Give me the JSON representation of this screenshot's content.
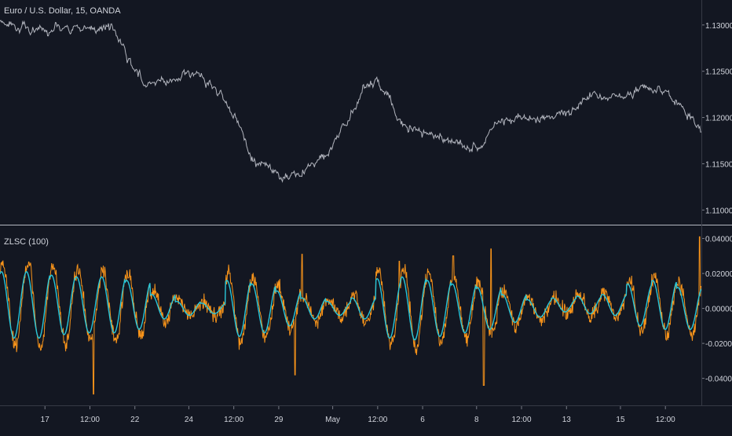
{
  "chart_data": [
    {
      "type": "line",
      "title": "Euro / U.S. Dollar, 15, OANDA",
      "series": [],
      "y_ticks": [
        "1.13000",
        "1.12500",
        "1.12000",
        "1.11500",
        "1.11000"
      ],
      "y_tick_values": [
        1.13,
        1.125,
        1.12,
        1.115,
        1.11
      ],
      "ylim": [
        1.1085,
        1.1327
      ],
      "price_path": {
        "x": [
          0,
          5,
          10,
          15,
          18,
          20,
          22,
          23,
          25,
          27,
          30,
          33,
          35,
          37,
          38,
          40,
          43,
          45,
          48,
          50,
          52,
          55,
          58,
          60,
          65,
          70,
          75,
          80,
          85,
          90,
          95,
          100,
          105,
          110,
          112
        ],
        "close": [
          1.1306,
          1.1298,
          1.13,
          1.1295,
          1.1298,
          1.1275,
          1.1248,
          1.124,
          1.1242,
          1.124,
          1.1248,
          1.1237,
          1.123,
          1.121,
          1.1195,
          1.116,
          1.1145,
          1.1135,
          1.1137,
          1.1155,
          1.116,
          1.1185,
          1.1235,
          1.1242,
          1.119,
          1.118,
          1.1163,
          1.1197,
          1.1202,
          1.1206,
          1.1222,
          1.1228,
          1.1236,
          1.1205,
          1.118
        ]
      }
    },
    {
      "type": "line",
      "title": "ZLSC (100)",
      "series": [],
      "y_ticks": [
        "0.04000",
        "0.02000",
        "0.00000",
        "-0.02000",
        "-0.04000"
      ],
      "y_tick_values": [
        0.04,
        0.02,
        0.0,
        -0.02,
        -0.04
      ],
      "ylim": [
        -0.055,
        0.047
      ],
      "signal_amplitude": [
        0.019,
        0.019,
        0.017,
        0.016,
        0.016,
        0.014,
        0.007,
        0.004,
        0.003,
        0.016,
        0.014,
        0.01,
        0.006,
        0.004,
        0.006,
        0.017,
        0.018,
        0.016,
        0.014,
        0.012,
        0.008,
        0.005,
        0.004,
        0.005,
        0.006,
        0.012,
        0.014,
        0.012
      ],
      "signal_offset": [
        0.002,
        0.002,
        0.002,
        0.002,
        0.002,
        0.002,
        0.001,
        0.0,
        0.0,
        0.0,
        0.0,
        0.0,
        0.0,
        0.0,
        0.0,
        0.0,
        0.0,
        0.0,
        0.0,
        0.0,
        0.0,
        0.0,
        0.002,
        0.002,
        0.002,
        0.002,
        0.002,
        0.0
      ],
      "spikes": [
        {
          "x": 5.2,
          "value": -0.049
        },
        {
          "x": 16.4,
          "value": -0.038
        },
        {
          "x": 16.8,
          "value": 0.031
        },
        {
          "x": 22.2,
          "value": 0.027
        },
        {
          "x": 25.2,
          "value": 0.03
        },
        {
          "x": 26.9,
          "value": -0.044
        },
        {
          "x": 27.3,
          "value": 0.034
        },
        {
          "x": 38.9,
          "value": 0.041
        },
        {
          "x": 48.0,
          "value": 0.031
        }
      ]
    }
  ],
  "x_axis": {
    "ticks": [
      {
        "label": "17",
        "x": 2.5
      },
      {
        "label": "12:00",
        "x": 5.0
      },
      {
        "label": "22",
        "x": 7.5
      },
      {
        "label": "24",
        "x": 10.5
      },
      {
        "label": "12:00",
        "x": 13.0
      },
      {
        "label": "29",
        "x": 15.5
      },
      {
        "label": "May",
        "x": 18.5
      },
      {
        "label": "12:00",
        "x": 21.0
      },
      {
        "label": "6",
        "x": 23.5
      },
      {
        "label": "8",
        "x": 26.5
      },
      {
        "label": "12:00",
        "x": 29.0
      },
      {
        "label": "13",
        "x": 31.5
      },
      {
        "label": "15",
        "x": 34.5
      },
      {
        "label": "12:00",
        "x": 37.0
      }
    ]
  },
  "colors": {
    "background": "#131722",
    "price_line": "#b2b5be",
    "oscillator_raw": "#f7931a",
    "oscillator_signal": "#26c6da",
    "axis_text": "#d1d4dc",
    "separator": "#d1d4dc",
    "border": "#363a45",
    "tick": "#787b86"
  }
}
